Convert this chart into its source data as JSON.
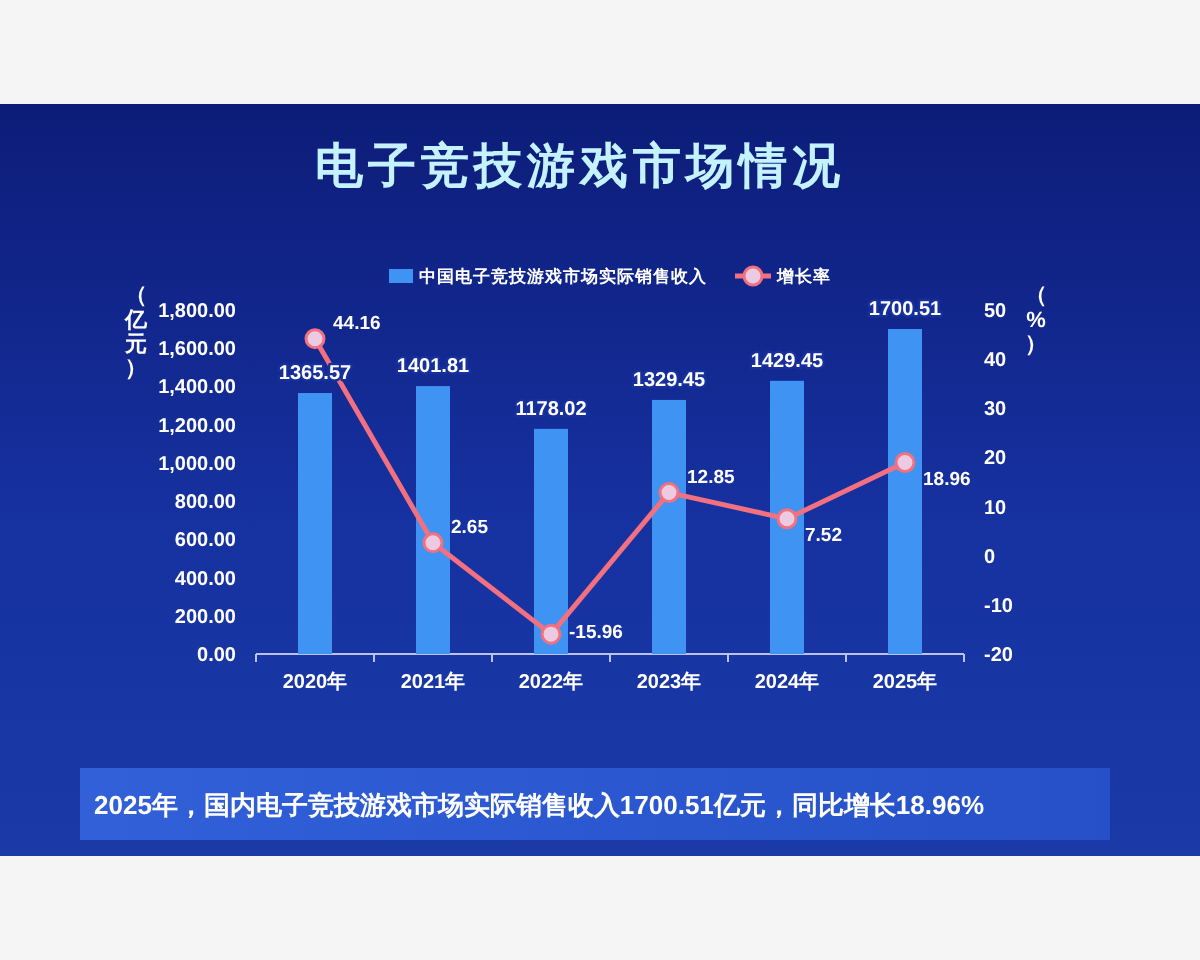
{
  "chart_data": {
    "type": "bar",
    "title": "电子竞技游戏市场情况",
    "categories": [
      "2020年",
      "2021年",
      "2022年",
      "2023年",
      "2024年",
      "2025年"
    ],
    "series": [
      {
        "name": "中国电子竞技游戏市场实际销售收入",
        "color": "#3f93f2",
        "values": [
          1365.57,
          1401.81,
          1178.02,
          1329.45,
          1429.45,
          1700.51
        ]
      },
      {
        "name": "增长率",
        "type": "line",
        "axis": "y2",
        "color": "#f2707f",
        "values": [
          44.16,
          2.65,
          -15.96,
          12.85,
          7.52,
          18.96
        ]
      }
    ],
    "ylabel": "（亿元）",
    "y2label": "（%）",
    "ylim": [
      0,
      1800
    ],
    "yticks": [
      {
        "value": 0,
        "label": "0.00"
      },
      {
        "value": 200,
        "label": "200.00"
      },
      {
        "value": 400,
        "label": "400.00"
      },
      {
        "value": 600,
        "label": "600.00"
      },
      {
        "value": 800,
        "label": "800.00"
      },
      {
        "value": 1000,
        "label": "1,000.00"
      },
      {
        "value": 1200,
        "label": "1,200.00"
      },
      {
        "value": 1400,
        "label": "1,400.00"
      },
      {
        "value": 1600,
        "label": "1,600.00"
      },
      {
        "value": 1800,
        "label": "1,800.00"
      }
    ],
    "y2lim": [
      -20,
      50
    ],
    "y2ticks": [
      -20,
      -10,
      0,
      10,
      20,
      30,
      40,
      50
    ],
    "data_labels": true,
    "legend": "top",
    "marker": "circle",
    "annotations": [
      "2025年，国内电子竞技游戏市场实际销售收入1700.51亿元，同比增长18.96%"
    ]
  }
}
